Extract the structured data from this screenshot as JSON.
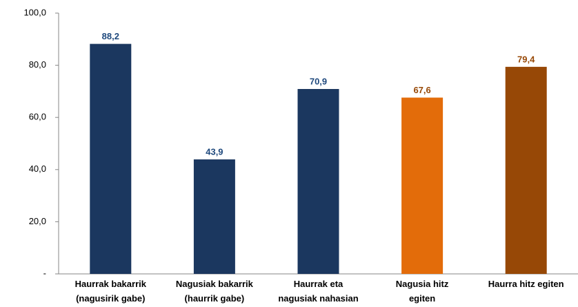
{
  "chart_data": {
    "type": "bar",
    "categories": [
      "Haurrak bakarrik\n(nagusirik gabe)",
      "Nagusiak bakarrik\n(haurrik gabe)",
      "Haurrak eta\nnagusiak nahasian",
      "Nagusia hitz\negiten",
      "Haurra hitz egiten"
    ],
    "values": [
      88.2,
      43.9,
      70.9,
      67.6,
      79.4
    ],
    "value_labels": [
      "88,2",
      "43,9",
      "70,9",
      "67,6",
      "79,4"
    ],
    "colors": [
      "#1b375f",
      "#1b375f",
      "#1b375f",
      "#e36c0a",
      "#974806"
    ],
    "label_colors": [
      "#1f497d",
      "#1f497d",
      "#1f497d",
      "#974806",
      "#974806"
    ],
    "ylim": [
      0,
      100
    ],
    "yticks": [
      {
        "value": 0,
        "label": "-"
      },
      {
        "value": 20,
        "label": "20,0"
      },
      {
        "value": 40,
        "label": "40,0"
      },
      {
        "value": 60,
        "label": "60,0"
      },
      {
        "value": 80,
        "label": "80,0"
      },
      {
        "value": 100,
        "label": "100,0"
      }
    ],
    "grid": false
  }
}
